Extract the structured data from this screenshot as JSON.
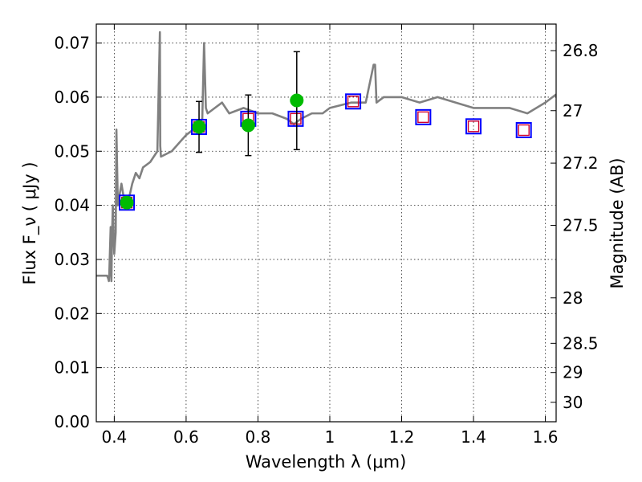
{
  "chart_data": {
    "type": "scatter",
    "xlabel": "Wavelength  λ (μm)",
    "ylabel": "Flux  F_ν  ( μJy )",
    "ylabel_right": "Magnitude (AB)",
    "xlim": [
      0.35,
      1.63
    ],
    "ylim": [
      0.0,
      0.0735
    ],
    "xticks": [
      0.4,
      0.6,
      0.8,
      1.0,
      1.2,
      1.4,
      1.6
    ],
    "xtick_labels": [
      "0.4",
      "0.6",
      "0.8",
      "1",
      "1.2",
      "1.4",
      "1.6"
    ],
    "yticks": [
      0.0,
      0.01,
      0.02,
      0.03,
      0.04,
      0.05,
      0.06,
      0.07
    ],
    "ytick_labels": [
      "0.00",
      "0.01",
      "0.02",
      "0.03",
      "0.04",
      "0.05",
      "0.06",
      "0.07"
    ],
    "right_ticks": [
      {
        "label": "26.8",
        "flux": 0.0686
      },
      {
        "label": "27",
        "flux": 0.0575
      },
      {
        "label": "27.2",
        "flux": 0.0478
      },
      {
        "label": "27.5",
        "flux": 0.0363
      },
      {
        "label": "28",
        "flux": 0.0229
      },
      {
        "label": "28.5",
        "flux": 0.0145
      },
      {
        "label": "29",
        "flux": 0.0091
      },
      {
        "label": "30",
        "flux": 0.0036
      }
    ],
    "grid": true,
    "series": [
      {
        "role": "model spectrum",
        "color": "#808080",
        "x": [
          0.35,
          0.37,
          0.38,
          0.383,
          0.385,
          0.386,
          0.39,
          0.392,
          0.394,
          0.396,
          0.398,
          0.4,
          0.404,
          0.406,
          0.41,
          0.42,
          0.43,
          0.44,
          0.45,
          0.46,
          0.47,
          0.48,
          0.5,
          0.52,
          0.527,
          0.528,
          0.53,
          0.56,
          0.6,
          0.62,
          0.645,
          0.65,
          0.655,
          0.66,
          0.68,
          0.7,
          0.72,
          0.76,
          0.8,
          0.84,
          0.88,
          0.9,
          0.92,
          0.95,
          0.98,
          1.0,
          1.06,
          1.1,
          1.122,
          1.126,
          1.13,
          1.15,
          1.2,
          1.25,
          1.3,
          1.4,
          1.5,
          1.55,
          1.6,
          1.63
        ],
        "y": [
          0.027,
          0.027,
          0.027,
          0.0265,
          0.026,
          0.027,
          0.036,
          0.026,
          0.035,
          0.04,
          0.035,
          0.031,
          0.035,
          0.054,
          0.04,
          0.044,
          0.04,
          0.041,
          0.044,
          0.046,
          0.045,
          0.047,
          0.048,
          0.05,
          0.072,
          0.051,
          0.049,
          0.05,
          0.053,
          0.054,
          0.056,
          0.07,
          0.058,
          0.057,
          0.058,
          0.059,
          0.057,
          0.058,
          0.057,
          0.057,
          0.056,
          0.055,
          0.056,
          0.057,
          0.057,
          0.058,
          0.059,
          0.059,
          0.066,
          0.066,
          0.059,
          0.06,
          0.06,
          0.059,
          0.06,
          0.058,
          0.058,
          0.057,
          0.059,
          0.0605
        ]
      },
      {
        "role": "model photometry",
        "marker": "open square",
        "color": "#d0002b",
        "x": [
          0.435,
          0.636,
          0.773,
          0.905,
          1.065,
          1.26,
          1.4,
          1.54
        ],
        "y": [
          0.0405,
          0.0545,
          0.056,
          0.056,
          0.0592,
          0.0563,
          0.0546,
          0.0539
        ]
      },
      {
        "role": "observed photometry",
        "marker": "open square",
        "color": "#0000ff",
        "x": [
          0.435,
          0.636,
          0.773,
          0.905,
          1.065,
          1.26,
          1.4,
          1.54
        ],
        "y": [
          0.0405,
          0.0545,
          0.056,
          0.056,
          0.0592,
          0.0563,
          0.0546,
          0.0539
        ]
      },
      {
        "role": "detections",
        "marker": "filled circle",
        "color": "#00bb00",
        "x": [
          0.435,
          0.636,
          0.773,
          0.908
        ],
        "y": [
          0.0405,
          0.0545,
          0.0548,
          0.0594
        ],
        "err_lo": [
          null,
          0.0498,
          0.0492,
          0.0503
        ],
        "err_hi": [
          null,
          0.0592,
          0.0604,
          0.0684
        ]
      }
    ]
  }
}
